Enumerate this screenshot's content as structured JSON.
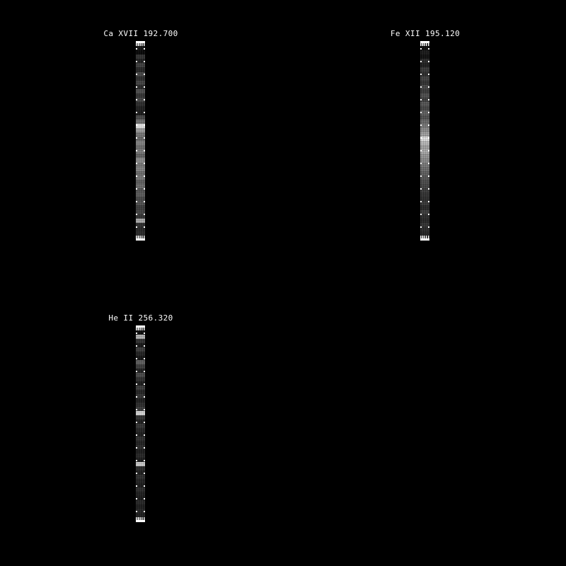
{
  "background_color": "#000000",
  "foreground_color": "#ffffff",
  "chart_data": [
    {
      "type": "heatmap",
      "title": "Ca XVII 192.700",
      "orientation": "vertical-strip",
      "colormap": "grayscale",
      "legend_position": "none",
      "grid": false,
      "axis_tick_style": "small white outward ticks on all four sides, no numeric labels",
      "values": [
        18,
        6,
        48,
        30,
        62,
        38,
        70,
        45,
        66,
        40,
        78,
        52,
        68,
        44,
        30,
        26,
        72,
        112,
        232,
        158,
        118,
        104,
        132,
        112,
        124,
        100,
        140,
        120,
        132,
        108,
        120,
        96,
        108,
        84,
        92,
        72,
        80,
        60,
        68,
        52,
        170,
        46,
        38,
        42
      ]
    },
    {
      "type": "heatmap",
      "title": "Fe XII 195.120",
      "orientation": "vertical-strip",
      "colormap": "grayscale",
      "legend_position": "none",
      "grid": false,
      "axis_tick_style": "small white outward ticks on all four sides, no numeric labels",
      "values": [
        10,
        25,
        15,
        40,
        30,
        55,
        45,
        65,
        50,
        70,
        58,
        78,
        62,
        85,
        70,
        95,
        80,
        105,
        120,
        140,
        160,
        225,
        185,
        162,
        172,
        150,
        138,
        120,
        108,
        95,
        85,
        75,
        68,
        58,
        50,
        45,
        55,
        40,
        60,
        45,
        38,
        50,
        42,
        35
      ]
    },
    {
      "type": "heatmap",
      "title": "He II 256.320",
      "orientation": "vertical-strip",
      "colormap": "grayscale",
      "legend_position": "none",
      "grid": false,
      "axis_tick_style": "small white outward ticks on all four sides, no numeric labels",
      "values": [
        12,
        178,
        48,
        22,
        58,
        34,
        20,
        95,
        60,
        30,
        72,
        46,
        28,
        58,
        36,
        50,
        30,
        44,
        58,
        215,
        48,
        30,
        52,
        36,
        28,
        46,
        33,
        42,
        28,
        38,
        26,
        205,
        42,
        30,
        46,
        33,
        26,
        42,
        30,
        25,
        38,
        28,
        35,
        30
      ]
    }
  ]
}
